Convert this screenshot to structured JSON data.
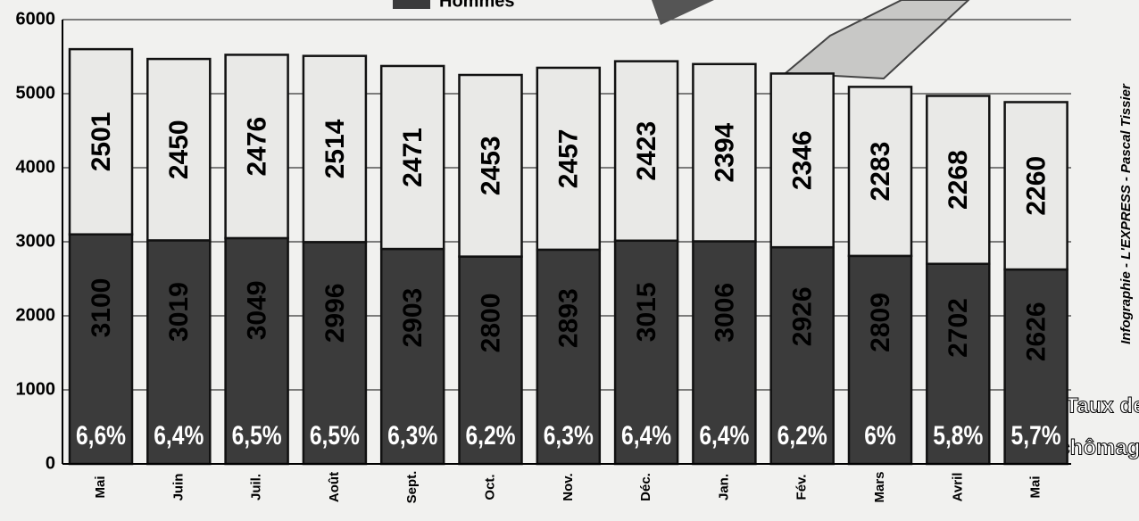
{
  "chart_data": {
    "type": "bar",
    "stacked": true,
    "categories": [
      "Mai",
      "Juin",
      "Juil.",
      "Août",
      "Sept.",
      "Oct.",
      "Nov.",
      "Déc.",
      "Jan.",
      "Fév.",
      "Mars",
      "Avril",
      "Mai"
    ],
    "series": [
      {
        "name": "Hommes",
        "color": "#3b3b3b",
        "values": [
          3100,
          3019,
          3049,
          2996,
          2903,
          2800,
          2893,
          3015,
          3006,
          2926,
          2809,
          2702,
          2626
        ]
      },
      {
        "color": "#e9e9e7",
        "values": [
          2501,
          2450,
          2476,
          2514,
          2471,
          2453,
          2457,
          2423,
          2394,
          2346,
          2283,
          2268,
          2260
        ]
      }
    ],
    "ylim": [
      0,
      6000
    ],
    "yticks": [
      0,
      1000,
      2000,
      3000,
      4000,
      5000,
      6000
    ],
    "grid": true,
    "rate_title": [
      "Taux de",
      "chômage"
    ],
    "rate_labels": [
      "6,6%",
      "6,4%",
      "6,5%",
      "6,5%",
      "6,3%",
      "6,2%",
      "6,3%",
      "6,4%",
      "6,4%",
      "6,2%",
      "6%",
      "5,8%",
      "5,7%"
    ],
    "credit": "Infographie - L'EXPRESS - Pascal Tissier"
  }
}
